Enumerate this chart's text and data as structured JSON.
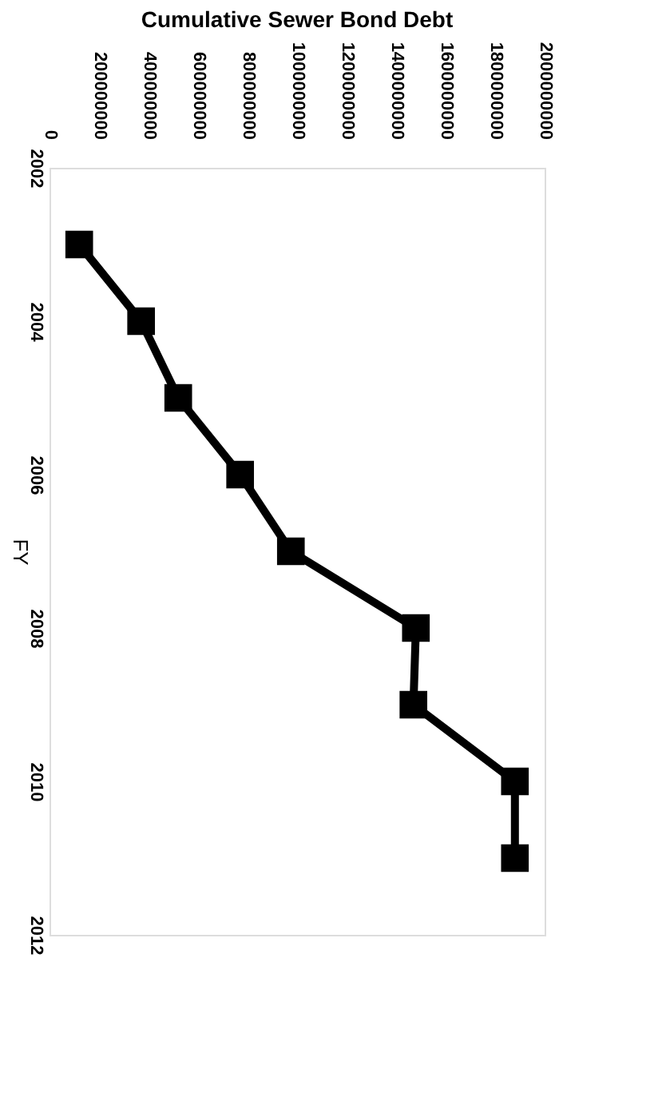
{
  "chart_data": {
    "type": "line",
    "title": "Cumulative Sewer Bond Debt",
    "ylabel": "FY",
    "x": [
      120000000,
      370000000,
      520000000,
      770000000,
      975000000,
      1480000000,
      1470000000,
      1880000000,
      1880000000
    ],
    "series": [
      {
        "color": "#000000",
        "values": [
          2003,
          2004,
          2005,
          2006,
          2007,
          2008,
          2009,
          2010,
          2011
        ]
      }
    ],
    "ylim": [
      2012,
      2002
    ],
    "yticks": [
      2002,
      2004,
      2006,
      2008,
      2010,
      2012
    ],
    "xlim": [
      0,
      2000000000
    ],
    "xticks": [
      0,
      200000000,
      400000000,
      600000000,
      800000000,
      1000000000,
      1200000000,
      1400000000,
      1600000000,
      1800000000,
      2000000000
    ],
    "grid": false,
    "legend": false,
    "marker": "square",
    "line_style": "solid"
  }
}
